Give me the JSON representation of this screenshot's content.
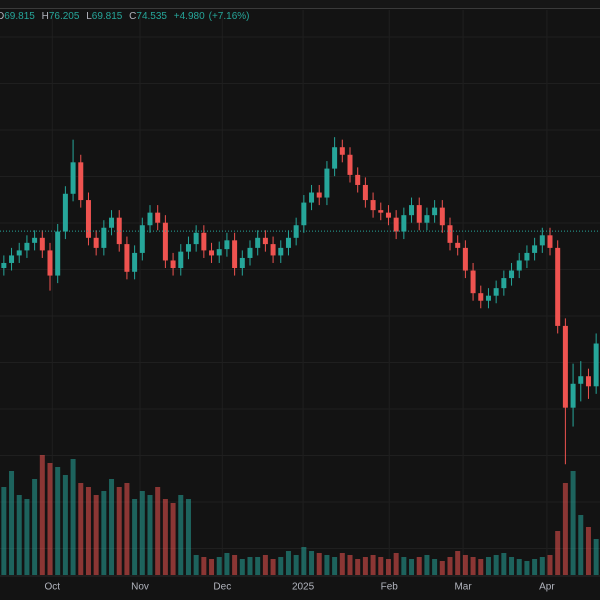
{
  "chart_data": {
    "type": "candlestick",
    "header": {
      "labels": [
        "D",
        "H",
        "L",
        "C"
      ],
      "values": [
        69.815,
        76.205,
        69.815,
        74.535
      ],
      "change": {
        "value": 4.98,
        "label": "+4.980"
      },
      "change_pct": {
        "value": 7.16,
        "label": "(+7.16%)"
      }
    },
    "up_color": "#26a69a",
    "down_color": "#ef5350",
    "grid": true,
    "xlim": [
      0,
      78
    ],
    "xticks": [
      {
        "value": 6.8,
        "label": "Oct"
      },
      {
        "value": 18.2,
        "label": "Nov"
      },
      {
        "value": 28.9,
        "label": "Dec"
      },
      {
        "value": 39.4,
        "label": "2025"
      },
      {
        "value": 50.6,
        "label": "Feb"
      },
      {
        "value": 60.2,
        "label": "Mar"
      },
      {
        "value": 71.1,
        "label": "Apr"
      }
    ],
    "ylim": [
      47.6,
      92.9
    ],
    "volume_ylim": [
      0,
      100
    ],
    "open": [
      71.6,
      72.0,
      72.6,
      73.0,
      73.6,
      74.0,
      73.0,
      71.0,
      74.5,
      77.5,
      80.0,
      77.0,
      74.0,
      73.2,
      74.8,
      75.6,
      73.5,
      71.3,
      72.8,
      75.0,
      76.0,
      75.2,
      72.2,
      71.6,
      72.9,
      73.5,
      74.4,
      73.0,
      72.6,
      73.1,
      73.8,
      71.6,
      72.4,
      73.2,
      74.0,
      73.5,
      72.6,
      73.2,
      74.0,
      75.0,
      76.8,
      77.6,
      77.2,
      79.5,
      81.2,
      80.6,
      79.0,
      78.2,
      77.0,
      76.2,
      76.0,
      75.6,
      74.5,
      75.8,
      76.6,
      75.2,
      75.8,
      76.4,
      75.0,
      73.6,
      73.2,
      71.4,
      69.6,
      69.0,
      69.4,
      70.0,
      70.8,
      71.4,
      72.2,
      72.8,
      73.4,
      74.2,
      73.2,
      67.0,
      60.5,
      62.4,
      63.0,
      62.2
    ],
    "high": [
      72.6,
      73.2,
      73.6,
      74.2,
      74.6,
      74.6,
      73.6,
      75.1,
      78.1,
      81.8,
      80.6,
      77.6,
      74.6,
      75.4,
      76.2,
      76.2,
      74.1,
      73.4,
      75.6,
      76.6,
      76.6,
      75.8,
      72.8,
      73.5,
      74.1,
      75.0,
      75.0,
      73.6,
      73.7,
      74.4,
      74.4,
      73.0,
      73.8,
      74.6,
      74.6,
      74.1,
      73.8,
      74.6,
      75.6,
      77.4,
      78.2,
      78.2,
      80.1,
      82.0,
      81.8,
      81.2,
      79.6,
      78.8,
      77.6,
      76.8,
      76.6,
      76.2,
      76.4,
      77.2,
      77.2,
      76.4,
      77.0,
      77.0,
      75.6,
      74.2,
      73.8,
      72.0,
      70.2,
      70.0,
      70.6,
      71.4,
      72.0,
      72.8,
      73.4,
      74.0,
      74.8,
      74.8,
      73.8,
      67.6,
      64.0,
      64.2,
      63.6,
      66.4
    ],
    "low": [
      71.0,
      71.4,
      72.0,
      72.4,
      73.0,
      72.4,
      69.8,
      70.4,
      73.9,
      76.9,
      76.4,
      73.4,
      72.6,
      72.6,
      74.2,
      72.9,
      70.7,
      70.7,
      72.2,
      74.4,
      74.6,
      71.6,
      71.0,
      71.0,
      72.3,
      72.9,
      72.4,
      72.0,
      72.0,
      72.5,
      71.0,
      71.0,
      71.8,
      72.6,
      72.9,
      72.0,
      72.0,
      72.6,
      73.4,
      74.4,
      76.2,
      76.6,
      76.6,
      78.9,
      80.0,
      78.4,
      77.6,
      76.4,
      75.6,
      75.4,
      75.0,
      73.9,
      73.9,
      75.2,
      74.6,
      74.6,
      75.2,
      74.4,
      73.0,
      72.6,
      70.8,
      69.0,
      68.4,
      68.4,
      68.8,
      69.4,
      70.2,
      70.8,
      71.6,
      72.2,
      72.8,
      72.6,
      66.4,
      56.0,
      59.0,
      61.0,
      61.2,
      61.6
    ],
    "close": [
      72.0,
      72.6,
      73.0,
      73.6,
      74.0,
      73.0,
      71.0,
      74.5,
      77.5,
      80.0,
      77.0,
      74.0,
      73.2,
      74.8,
      75.6,
      73.5,
      71.3,
      72.8,
      75.0,
      76.0,
      75.2,
      72.2,
      71.6,
      72.9,
      73.5,
      74.4,
      73.0,
      72.6,
      73.1,
      73.8,
      71.6,
      72.4,
      73.2,
      74.0,
      73.5,
      72.6,
      73.2,
      74.0,
      75.0,
      76.8,
      77.6,
      77.2,
      79.5,
      81.2,
      80.6,
      79.0,
      78.2,
      77.0,
      76.2,
      76.0,
      75.6,
      74.5,
      75.8,
      76.6,
      75.2,
      75.8,
      76.4,
      75.0,
      73.6,
      73.2,
      71.4,
      69.6,
      69.0,
      69.4,
      70.0,
      70.8,
      71.4,
      72.2,
      72.8,
      73.4,
      74.2,
      73.2,
      67.0,
      60.5,
      62.4,
      63.0,
      62.2,
      65.6
    ],
    "volume": [
      44,
      52,
      40,
      38,
      48,
      60,
      56,
      54,
      50,
      58,
      46,
      44,
      40,
      42,
      48,
      44,
      46,
      38,
      42,
      40,
      44,
      38,
      36,
      40,
      38,
      10,
      9,
      8,
      9,
      11,
      10,
      8,
      9,
      9,
      10,
      8,
      9,
      12,
      10,
      14,
      12,
      11,
      10,
      9,
      11,
      10,
      8,
      9,
      10,
      9,
      8,
      11,
      9,
      8,
      9,
      10,
      8,
      7,
      9,
      12,
      10,
      9,
      8,
      9,
      10,
      11,
      9,
      8,
      7,
      8,
      9,
      10,
      22,
      46,
      52,
      30,
      24,
      18
    ]
  }
}
